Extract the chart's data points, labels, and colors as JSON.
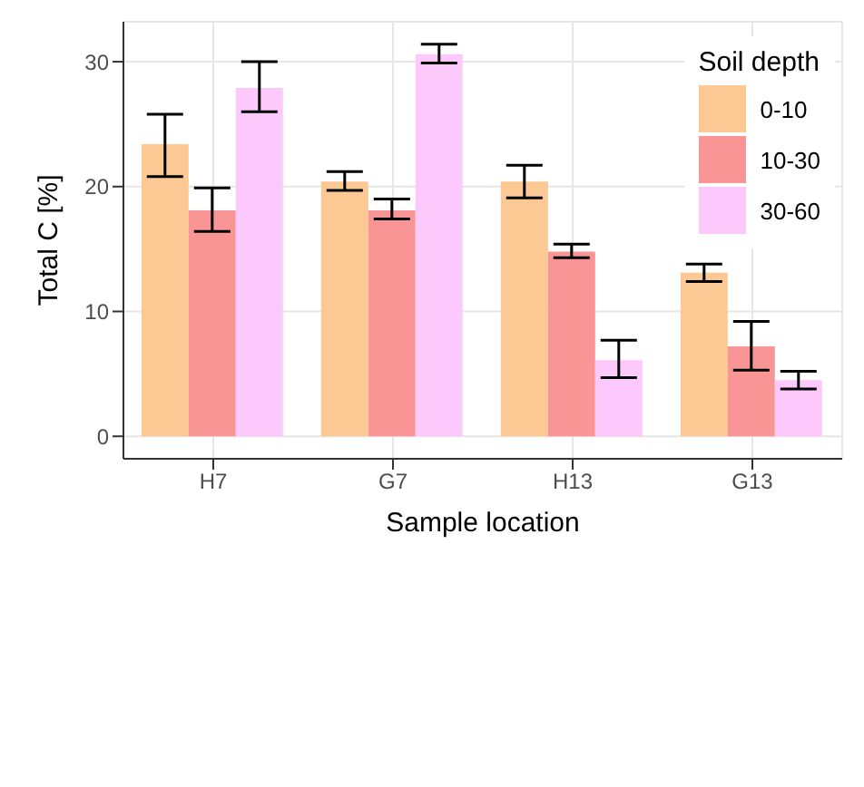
{
  "chart_data": {
    "type": "bar",
    "xlabel": "Sample location",
    "ylabel": "Total C [%]",
    "legend_title": "Soil depth",
    "categories": [
      "H7",
      "G7",
      "H13",
      "G13"
    ],
    "series": [
      {
        "name": "0-10",
        "color": "#fcc894",
        "values": [
          23.4,
          20.4,
          20.4,
          13.1
        ],
        "errors": [
          [
            20.8,
            25.8
          ],
          [
            19.7,
            21.2
          ],
          [
            19.1,
            21.7
          ],
          [
            12.4,
            13.8
          ]
        ]
      },
      {
        "name": "10-30",
        "color": "#f99595",
        "values": [
          18.1,
          18.1,
          14.8,
          7.2
        ],
        "errors": [
          [
            16.4,
            19.9
          ],
          [
            17.4,
            19.0
          ],
          [
            14.3,
            15.4
          ],
          [
            5.3,
            9.2
          ]
        ]
      },
      {
        "name": "30-60",
        "color": "#fdc9fd",
        "values": [
          27.9,
          30.6,
          6.1,
          4.5
        ],
        "errors": [
          [
            26.0,
            30.0
          ],
          [
            29.9,
            31.4
          ],
          [
            4.7,
            7.7
          ],
          [
            3.8,
            5.2
          ]
        ]
      }
    ],
    "ylim": [
      -1.8,
      33.2
    ],
    "yticks": [
      0,
      10,
      20,
      30
    ],
    "grid": true,
    "legend": "top right"
  }
}
